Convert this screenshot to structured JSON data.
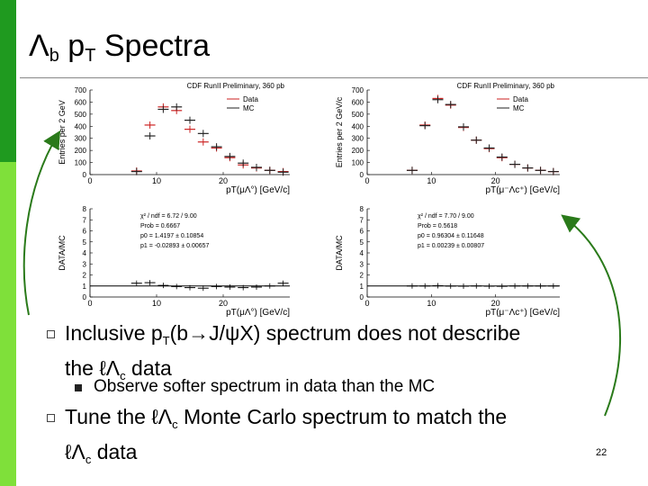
{
  "slide": {
    "title_main": "Λ",
    "title_sub1": "b",
    "title_mid": " p",
    "title_sub2": "T",
    "title_end": " Spectra",
    "page_number": "22"
  },
  "bullets": {
    "b1_a": "Inclusive p",
    "b1_sub": "T",
    "b1_b": "(b→J/ψX) spectrum does not describe",
    "b1_c": "the ℓΛ",
    "b1_csub": "c",
    "b1_d": " data",
    "b2": "Observe softer spectrum in data than the MC",
    "b3_a": "Tune the ℓΛ",
    "b3_sub": "c",
    "b3_b": " Monte Carlo spectrum to match the",
    "b3_c": "ℓΛ",
    "b3_csub": "c",
    "b3_d": " data"
  },
  "colors": {
    "data": "#cc2222",
    "mc": "#222222",
    "accent_dark": "#1f9a1f",
    "accent_light": "#7fe03a",
    "arrow": "#2a7a1a"
  },
  "chart_data": [
    {
      "type": "scatter",
      "panel": "top-left",
      "title": "CDF RunII Preliminary, 360 pb",
      "xlabel": "pT(μΛ°) [GeV/c]",
      "ylabel": "Entries per 2 GeV",
      "xlim": [
        0,
        30
      ],
      "ylim": [
        0,
        700
      ],
      "xticks": [
        "0",
        "10",
        "20"
      ],
      "yticks": [
        "0",
        "100",
        "200",
        "300",
        "400",
        "500",
        "600",
        "700"
      ],
      "legend": [
        "Data",
        "MC"
      ],
      "series": [
        {
          "name": "Data",
          "x": [
            7,
            9,
            11,
            13,
            15,
            17,
            19,
            21,
            23,
            25,
            27,
            29
          ],
          "y": [
            30,
            410,
            560,
            530,
            375,
            270,
            220,
            140,
            80,
            55,
            35,
            25
          ]
        },
        {
          "name": "MC",
          "x": [
            7,
            9,
            11,
            13,
            15,
            17,
            19,
            21,
            23,
            25,
            27,
            29
          ],
          "y": [
            25,
            320,
            540,
            560,
            450,
            340,
            230,
            150,
            95,
            60,
            35,
            20
          ]
        }
      ]
    },
    {
      "type": "scatter",
      "panel": "top-right",
      "title": "CDF RunII Preliminary, 360 pb",
      "xlabel": "pT(μ⁻Λc⁺) [GeV/c]",
      "ylabel": "Entries per 2 GeV/c",
      "xlim": [
        0,
        30
      ],
      "ylim": [
        0,
        700
      ],
      "xticks": [
        "0",
        "10",
        "20"
      ],
      "yticks": [
        "0",
        "100",
        "200",
        "300",
        "400",
        "500",
        "600",
        "700"
      ],
      "legend": [
        "Data",
        "MC"
      ],
      "series": [
        {
          "name": "Data",
          "x": [
            7,
            9,
            11,
            13,
            15,
            17,
            19,
            21,
            23,
            25,
            27,
            29
          ],
          "y": [
            35,
            410,
            630,
            575,
            390,
            285,
            215,
            140,
            85,
            55,
            35,
            25
          ]
        },
        {
          "name": "MC",
          "x": [
            7,
            9,
            11,
            13,
            15,
            17,
            19,
            21,
            23,
            25,
            27,
            29
          ],
          "y": [
            35,
            405,
            620,
            580,
            395,
            285,
            220,
            145,
            85,
            55,
            35,
            25
          ]
        }
      ]
    },
    {
      "type": "scatter",
      "panel": "bottom-left",
      "xlabel": "pT(μΛ°) [GeV/c]",
      "ylabel": "DATA/MC",
      "xlim": [
        0,
        30
      ],
      "ylim": [
        0,
        8
      ],
      "xticks": [
        "0",
        "10",
        "20"
      ],
      "yticks": [
        "0",
        "1",
        "2",
        "3",
        "4",
        "5",
        "6",
        "7",
        "8"
      ],
      "fit_box": [
        "χ² / ndf = 6.72 / 9.00",
        "Prob = 0.6667",
        "p0 = 1.4197 ± 0.10854",
        "p1 = -0.02893 ± 0.00657"
      ],
      "x": [
        7,
        9,
        11,
        13,
        15,
        17,
        19,
        21,
        23,
        25,
        27,
        29
      ],
      "y": [
        1.25,
        1.3,
        1.05,
        0.95,
        0.85,
        0.8,
        0.95,
        0.9,
        0.85,
        0.9,
        1.0,
        1.25
      ]
    },
    {
      "type": "scatter",
      "panel": "bottom-right",
      "xlabel": "pT(μ⁻Λc⁺) [GeV/c]",
      "ylabel": "DATA/MC",
      "xlim": [
        0,
        30
      ],
      "ylim": [
        0,
        8
      ],
      "xticks": [
        "0",
        "10",
        "20"
      ],
      "yticks": [
        "0",
        "1",
        "2",
        "3",
        "4",
        "5",
        "6",
        "7",
        "8"
      ],
      "fit_box": [
        "χ² / ndf = 7.70 / 9.00",
        "Prob = 0.5618",
        "p0 = 0.96304 ± 0.11648",
        "p1 = 0.00239 ± 0.00807"
      ],
      "x": [
        7,
        9,
        11,
        13,
        15,
        17,
        19,
        21,
        23,
        25,
        27,
        29
      ],
      "y": [
        1.0,
        1.0,
        1.02,
        0.99,
        0.98,
        1.0,
        0.98,
        0.97,
        1.0,
        1.0,
        1.0,
        1.0
      ]
    }
  ]
}
